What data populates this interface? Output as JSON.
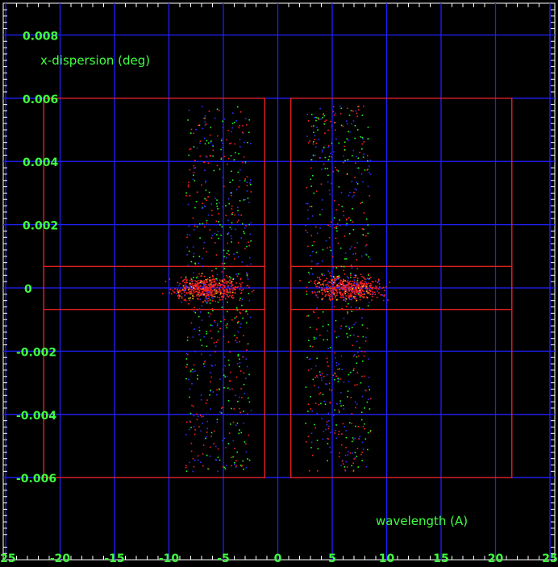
{
  "chart_data": {
    "type": "scatter",
    "xlabel": "wavelength (A)",
    "ylabel": "x-dispersion (deg)",
    "xlim": [
      -25,
      25
    ],
    "ylim": [
      -0.009,
      0.009
    ],
    "x_ticks": [
      -25,
      -20,
      -15,
      -10,
      -5,
      0,
      5,
      10,
      15,
      20,
      25
    ],
    "x_tick_labels": [
      "-25",
      "-20",
      "-15",
      "-10",
      "-5",
      "0",
      "5",
      "10",
      "15",
      "20",
      "25"
    ],
    "y_ticks": [
      0.008,
      0.006,
      0.004,
      0.002,
      0,
      -0.002,
      -0.004,
      -0.006
    ],
    "y_tick_labels": [
      "0.008",
      "0.006",
      "0.004",
      "0.002",
      "0",
      "-0.002",
      "-0.004",
      "-0.006"
    ],
    "grid": true,
    "regions": [
      {
        "x0": -21.5,
        "x1": -1.2,
        "y0": -0.006,
        "y1": 0.006
      },
      {
        "x0": -21.5,
        "x1": -1.2,
        "y0": -0.00068,
        "y1": 0.00068
      },
      {
        "x0": 1.2,
        "x1": 21.5,
        "y0": -0.006,
        "y1": 0.006
      },
      {
        "x0": 1.2,
        "x1": 21.5,
        "y0": -0.00068,
        "y1": 0.00068
      }
    ],
    "scatter_bands": [
      {
        "x_center": -5.5,
        "x_halfwidth": 3.0,
        "y_min": -0.0058,
        "y_max": 0.0058
      },
      {
        "x_center": 5.5,
        "x_halfwidth": 3.0,
        "y_min": -0.0058,
        "y_max": 0.0058
      }
    ],
    "clusters": [
      {
        "x": -6.5,
        "y": 0.0
      },
      {
        "x": 6.5,
        "y": 0.0
      }
    ],
    "series_colors": [
      "#ff2020",
      "#20ff20",
      "#3030ff"
    ]
  },
  "colors": {
    "background": "#000000",
    "grid": "#2020ff",
    "region": "#e02020",
    "text": "#40ff40",
    "axis_frame": "#ffffff"
  }
}
